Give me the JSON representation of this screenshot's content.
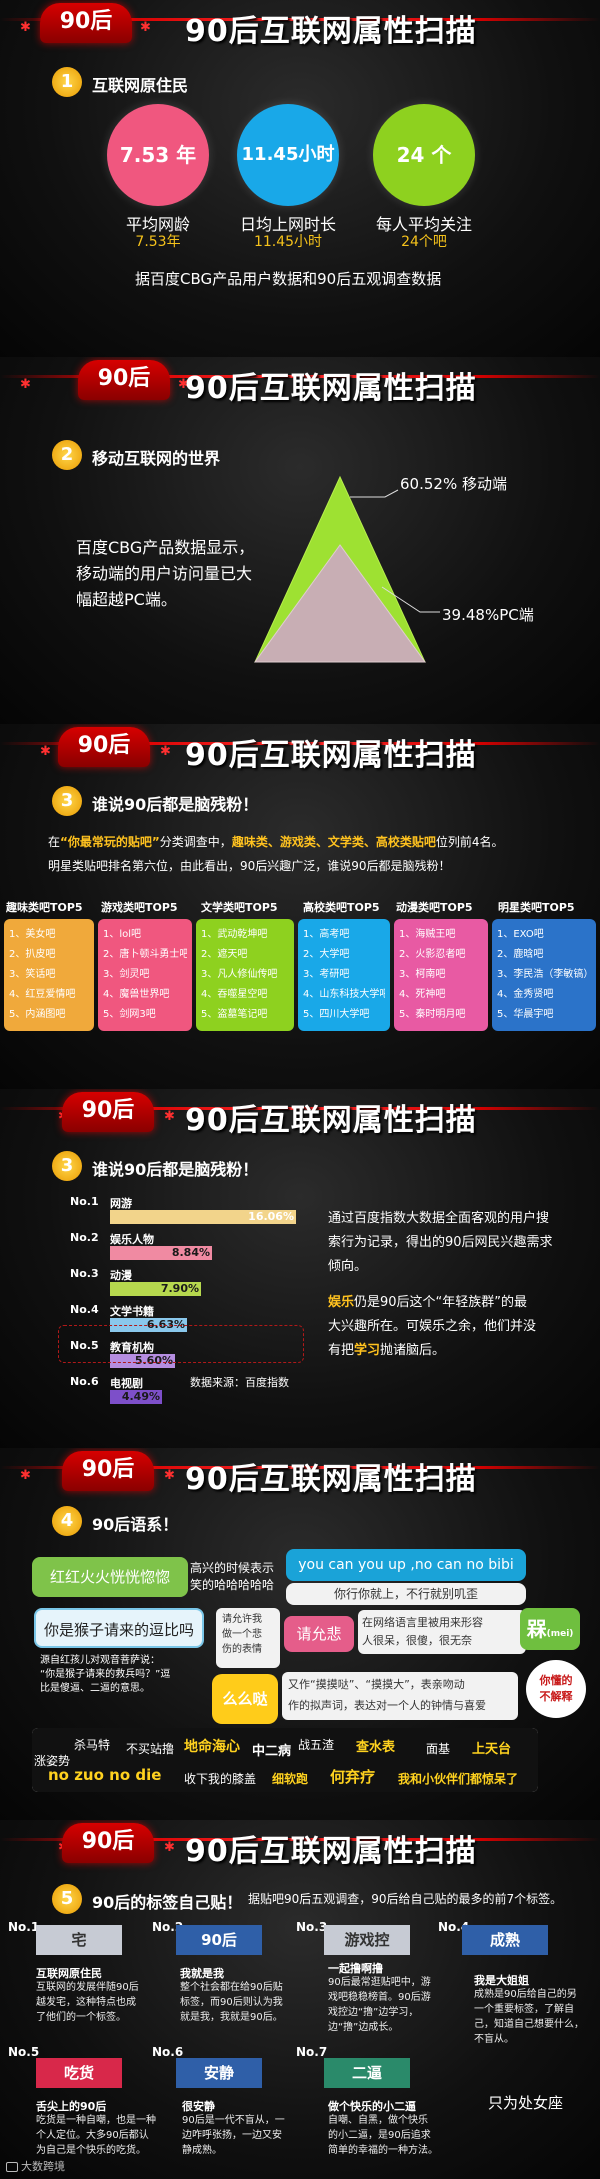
{
  "page_title": "90后互联网属性扫描",
  "badge": "90后",
  "s1": {
    "num": "1",
    "heading": "互联网原住民",
    "stats": [
      {
        "circle": "7.53 年",
        "label": "平均网龄",
        "value": "7.53年",
        "color": "#f0577f"
      },
      {
        "circle": "11.45小时",
        "label": "日均上网时长",
        "value": "11.45小时",
        "color": "#19a8e8"
      },
      {
        "circle": "24 个",
        "label": "每人平均关注",
        "value": "24个吧",
        "color": "#8ed11f"
      }
    ],
    "note": "据百度CBG产品用户数据和90后五观调查数据"
  },
  "s2": {
    "num": "2",
    "heading": "移动互联网的世界",
    "text": [
      "百度CBG产品数据显示，",
      "移动端的用户访问量已大",
      "幅超越PC端。"
    ],
    "mobile_label": "60.52%  移动端",
    "pc_label": "39.48%PC端",
    "mobile_pct": 60.52,
    "pc_pct": 39.48
  },
  "s3": {
    "num": "3",
    "heading": "谁说90后都是脑残粉！",
    "line1_a": "在",
    "line1_b": "“你最常玩的贴吧”",
    "line1_c": "分类调查中，",
    "line1_d": "趣味类、游戏类、文学类、高校类贴吧",
    "line1_e": "位列前4名。",
    "line2": "明星类贴吧排名第六位，由此看出，90后兴趣广泛，谁说90后都是脑残粉！",
    "cats": [
      {
        "head": "趣味类吧TOP5",
        "color": "#f0a93b",
        "items": [
          "1、美女吧",
          "2、扒皮吧",
          "3、笑话吧",
          "4、红豆爱情吧",
          "5、内涵图吧"
        ]
      },
      {
        "head": "游戏类吧TOP5",
        "color": "#f0577f",
        "items": [
          "1、lol吧",
          "2、唐卜顿斗勇士吧",
          "3、剑灵吧",
          "4、魔兽世界吧",
          "5、剑网3吧"
        ]
      },
      {
        "head": "文学类吧TOP5",
        "color": "#8ed11f",
        "items": [
          "1、武动乾坤吧",
          "2、遮天吧",
          "3、凡人修仙传吧",
          "4、吞噬星空吧",
          "5、盗墓笔记吧"
        ]
      },
      {
        "head": "高校类吧TOP5",
        "color": "#19a8e8",
        "items": [
          "1、高考吧",
          "2、大学吧",
          "3、考研吧",
          "4、山东科技大学吧",
          "5、四川大学吧"
        ]
      },
      {
        "head": "动漫类吧TOP5",
        "color": "#e85aa3",
        "items": [
          "1、海贼王吧",
          "2、火影忍者吧",
          "3、柯南吧",
          "4、死神吧",
          "5、秦时明月吧"
        ]
      },
      {
        "head": "明星类吧TOP5",
        "color": "#2b73c9",
        "items": [
          "1、EXO吧",
          "2、鹿晗吧",
          "3、李民浩（李敏镐）吧",
          "4、金秀贤吧",
          "5、华晨宇吧"
        ]
      }
    ]
  },
  "s4": {
    "num": "3",
    "heading": "谁说90后都是脑残粉！",
    "source": "数据来源：百度指数",
    "text_main": [
      "通过百度指数大数据全面客观的用户搜",
      "索行为记录，得出的90后网民兴趣需求",
      "倾向。"
    ],
    "text_b1": "娱乐",
    "text_b2": "仍是90后这个“年轻族群”的最",
    "text_b3": "大兴趣所在。可娱乐之余，他们并没",
    "text_b4": "有把",
    "text_b5": "学习",
    "text_b6": "抛诸脑后。"
  },
  "chart_data": {
    "type": "bar",
    "title": "",
    "categories": [
      "网游",
      "娱乐人物",
      "动漫",
      "文学书籍",
      "教育机构",
      "电视剧"
    ],
    "ranks": [
      "No.1",
      "No.2",
      "No.3",
      "No.4",
      "No.5",
      "No.6"
    ],
    "values": [
      16.06,
      8.84,
      7.9,
      6.63,
      5.6,
      4.49
    ],
    "value_labels": [
      "16.06%",
      "8.84%",
      "7.90%",
      "6.63%",
      "5.60%",
      "4.49%"
    ],
    "colors": [
      "#f2d48b",
      "#f08aa2",
      "#b6d84e",
      "#8ac8ec",
      "#b58de0",
      "#7d4fc9"
    ],
    "label_colors": [
      "#f2d48b",
      "#f08aa2",
      "#b6d84e",
      "#8ac8ec",
      "#b58de0",
      "#7d4fc9"
    ],
    "max": 16.06,
    "xlabel": "",
    "ylabel": ""
  },
  "s5": {
    "num": "4",
    "heading": "90后语系！",
    "b1": "红红火火恍恍惚惚",
    "b1_desc": [
      "高兴的时候表示",
      "笑的哈哈哈哈哈"
    ],
    "b2": "you can you up ,no can no bibi",
    "b2_desc": "你行你就上，不行就别叽歪",
    "b3": "你是猴子请来的逗比吗",
    "b3_desc": [
      "源自红孩儿对观音菩萨说：",
      "“你是猴子请来的救兵吗？”逗",
      "比是傻逼、二逼的意思。"
    ],
    "b4_desc": [
      "请允许我",
      "做一个悲",
      "伤的表情"
    ],
    "b4": "请允悲",
    "b5_desc": [
      "在网络语言里被用来形容",
      "人很呆，很傻，很无奈"
    ],
    "b5": "槑",
    "b5_sub": "(mei)",
    "b6": "么么哒",
    "b6_desc": [
      "又作“摸摸哒”、“摸摸大”，表亲吻动",
      "作的拟声词，表达对一个人的钟情与喜爱"
    ],
    "b7": [
      "你懂的",
      "不解释"
    ],
    "words": [
      {
        "t": "涨姿势",
        "c": "#ffffff",
        "s": 12
      },
      {
        "t": "杀马特",
        "c": "#ffffff",
        "s": 12
      },
      {
        "t": "不买站撸",
        "c": "#ffffff",
        "s": 12
      },
      {
        "t": "地命海心",
        "c": "#ffd21f",
        "s": 14
      },
      {
        "t": "中二病",
        "c": "#ffffff",
        "s": 13
      },
      {
        "t": "战五渣",
        "c": "#ffffff",
        "s": 12
      },
      {
        "t": "查水表",
        "c": "#ffd21f",
        "s": 13
      },
      {
        "t": "面基",
        "c": "#ffffff",
        "s": 12
      },
      {
        "t": "上天台",
        "c": "#ffd21f",
        "s": 13
      },
      {
        "t": "no zuo no die",
        "c": "#ffd21f",
        "s": 15
      },
      {
        "t": "收下我的膝盖",
        "c": "#ffffff",
        "s": 12
      },
      {
        "t": "细软跑",
        "c": "#ffd21f",
        "s": 12
      },
      {
        "t": "何弃疗",
        "c": "#ffd21f",
        "s": 15
      },
      {
        "t": "我和小伙伴们都惊呆了",
        "c": "#ffd21f",
        "s": 12
      }
    ]
  },
  "s6": {
    "num": "5",
    "heading": "90后的标签自己贴！",
    "intro": "据贴吧90后五观调查，90后给自己贴的最多的前7个标签。",
    "tags": [
      {
        "no": "No.1",
        "tag": "宅",
        "color": "#c7cbd4",
        "title": "互联网原住民",
        "desc": [
          "互联网的发展伴随90后",
          "越发宅，这种特点也成",
          "了他们的一个标签。"
        ]
      },
      {
        "no": "No.2",
        "tag": "90后",
        "color": "#2f5fa8",
        "title": "我就是我",
        "desc": [
          "整个社会都在给90后贴",
          "标签，而90后则认为我",
          "就是我，我就是90后。"
        ]
      },
      {
        "no": "No.3",
        "tag": "游戏控",
        "color": "#c7cbd4",
        "title": "一起撸啊撸",
        "desc": [
          "90后最常逛贴吧中，游",
          "戏吧稳稳榜首。90后游",
          "戏控边“撸”边学习，",
          "边“撸”边成长。"
        ]
      },
      {
        "no": "No.4",
        "tag": "成熟",
        "color": "#2f5fa8",
        "title": "我是大姐姐",
        "desc": [
          "成熟是90后给自己的另",
          "一个重要标签，了解自",
          "己，知道自己想要什么，",
          "不盲从。"
        ]
      },
      {
        "no": "No.5",
        "tag": "吃货",
        "color": "#d8284a",
        "title": "舌尖上的90后",
        "desc": [
          "吃货是一种自嘲，也是一种",
          "个人定位。大多90后都认",
          "为自己是个快乐的吃货。"
        ]
      },
      {
        "no": "No.6",
        "tag": "安静",
        "color": "#2f5fa8",
        "title": "很安静",
        "desc": [
          "90后是一代不盲从，一",
          "边咋呼张扬，一边又安",
          "静成熟。"
        ]
      },
      {
        "no": "No.7",
        "tag": "二逼",
        "color": "#2a8a6a",
        "title": "做个快乐的小二逼",
        "desc": [
          "自嘲、自黑，做个快乐",
          "的小二逼，是90后追求",
          "简单的幸福的一种方法。"
        ]
      }
    ],
    "bottom": "只为处女座",
    "watermark": "大数跨境"
  }
}
